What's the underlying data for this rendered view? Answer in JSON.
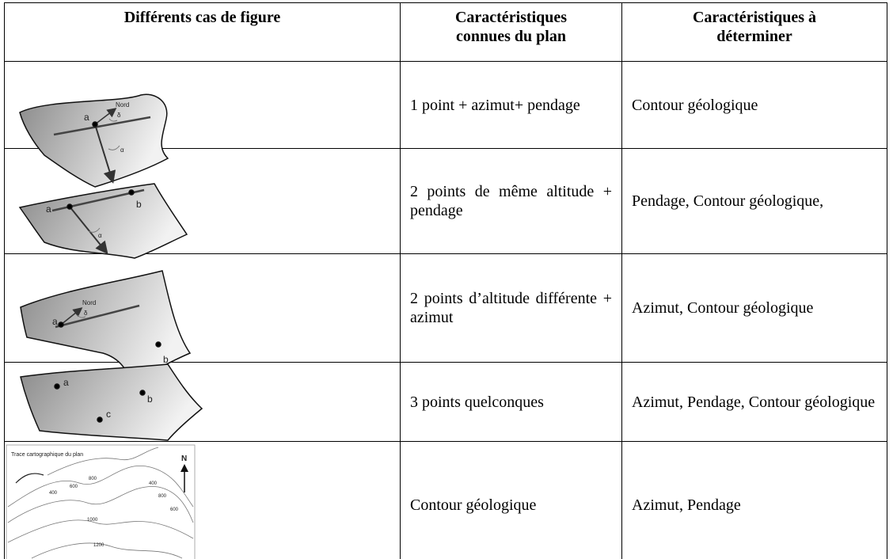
{
  "table": {
    "header": [
      "Différents cas de figure",
      "Caractéristiques connues du plan",
      "Caractéristiques à déterminer"
    ],
    "rows": [
      {
        "figure_labels": [
          "Nord",
          "a",
          "δ",
          "α"
        ],
        "known": "1 point + azimut+ pendage",
        "determine": "Contour géologique"
      },
      {
        "figure_labels": [
          "a",
          "b",
          "α"
        ],
        "known": "2 points de même altitude + pendage",
        "determine": "Pendage, Contour géologique,"
      },
      {
        "figure_labels": [
          "Nord",
          "δ",
          "a",
          "b"
        ],
        "known": "2 points d’altitude différente + azimut",
        "determine": "Azimut, Contour géologique"
      },
      {
        "figure_labels": [
          "a",
          "b",
          "c"
        ],
        "known": "3 points quelconques",
        "determine": "Azimut, Pendage, Contour géologique"
      },
      {
        "figure_labels": [
          "Trace cartographique du plan",
          "N",
          "400",
          "600",
          "800",
          "400",
          "800",
          "600",
          "1000",
          "1200"
        ],
        "known": "Contour géologique",
        "determine": "Azimut, Pendage"
      }
    ]
  }
}
